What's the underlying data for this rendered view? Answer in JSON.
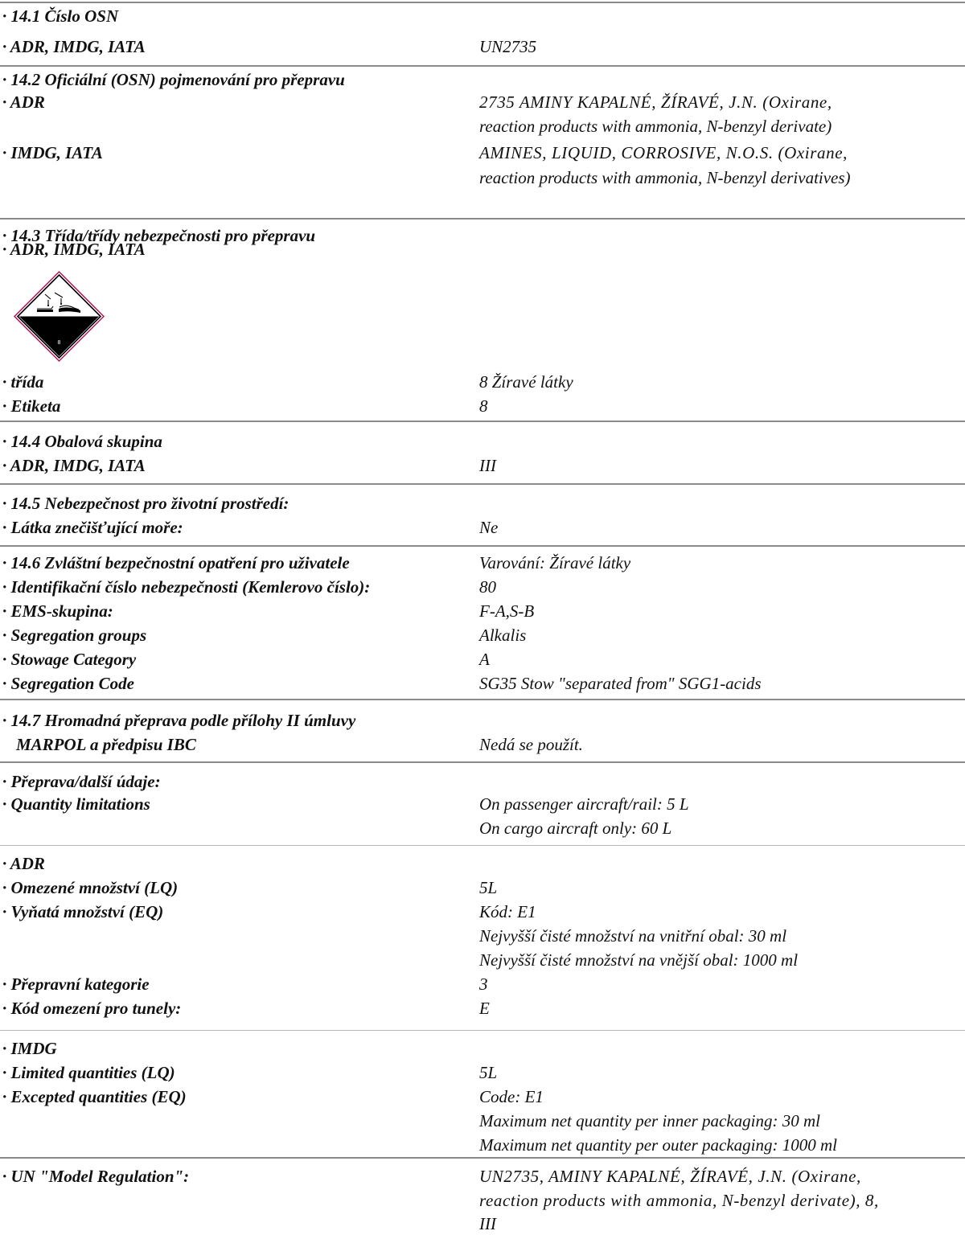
{
  "s1": {
    "title": "· 14.1 Číslo OSN",
    "l1": "· ADR, IMDG, IATA",
    "v1": "UN2735"
  },
  "s2": {
    "title": "· 14.2 Oficiální (OSN) pojmenování pro přepravu",
    "l1": "· ADR",
    "v1a": "2735 AMINY KAPALNÉ, ŽÍRAVÉ, J.N. (Oxirane,",
    "v1b": "reaction products with ammonia, N-benzyl derivate)",
    "l2": "· IMDG, IATA",
    "v2a": "AMINES, LIQUID, CORROSIVE, N.O.S. (Oxirane,",
    "v2b": "reaction products with ammonia, N-benzyl derivatives)"
  },
  "s3": {
    "title": "· 14.3 Třída/třídy nebezpečnosti pro přepravu",
    "sub": "· ADR, IMDG, IATA",
    "pictogram": {
      "icon": "corrosive-hazard-diamond",
      "number": "8"
    },
    "l1": "· třída",
    "v1": "8 Žíravé látky",
    "l2": "· Etiketa",
    "v2": "8"
  },
  "s4": {
    "title": "· 14.4 Obalová skupina",
    "l1": "· ADR, IMDG, IATA",
    "v1": "III"
  },
  "s5": {
    "title": "· 14.5 Nebezpečnost pro životní prostředí:",
    "l1": "· Látka znečišťující moře:",
    "v1": "Ne"
  },
  "s6": {
    "title": "· 14.6 Zvláštní bezpečnostní opatření pro uživatele",
    "tv": "Varování: Žíravé látky",
    "l1": "· Identifikační číslo nebezpečnosti (Kemlerovo číslo):",
    "v1": "80",
    "l2": "· EMS-skupina:",
    "v2": "F-A,S-B",
    "l3": "· Segregation groups",
    "v3": "Alkalis",
    "l4": "· Stowage Category",
    "v4": "A",
    "l5": "· Segregation Code",
    "v5": "SG35 Stow \"separated from\" SGG1-acids"
  },
  "s7": {
    "t1": "· 14.7 Hromadná přeprava podle přílohy II úmluvy",
    "t2": "MARPOL a předpisu IBC",
    "v": "Nedá se použít."
  },
  "s8": {
    "title": "· Přeprava/další údaje:",
    "l1": "· Quantity limitations",
    "v1a": "On passenger aircraft/rail: 5 L",
    "v1b": "On cargo aircraft only: 60 L"
  },
  "s9": {
    "title": "· ADR",
    "l1": "· Omezené množství (LQ)",
    "v1": "5L",
    "l2": "· Vyňatá množství (EQ)",
    "v2a": "Kód: E1",
    "v2b": "Nejvyšší čisté množství na vnitřní obal: 30 ml",
    "v2c": "Nejvyšší čisté množství na vnější obal: 1000 ml",
    "l3": "· Přepravní kategorie",
    "v3": "3",
    "l4": "· Kód omezení pro tunely:",
    "v4": "E"
  },
  "s10": {
    "title": "· IMDG",
    "l1": "· Limited quantities (LQ)",
    "v1": "5L",
    "l2": "· Excepted quantities (EQ)",
    "v2a": "Code: E1",
    "v2b": "Maximum net quantity per inner packaging: 30 ml",
    "v2c": "Maximum net quantity per outer packaging: 1000 ml"
  },
  "s11": {
    "l1": "· UN \"Model Regulation\":",
    "v1a": "UN2735, AMINY KAPALNÉ, ŽÍRAVÉ, J.N. (Oxirane,",
    "v1b": "reaction products with ammonia, N-benzyl derivate), 8,",
    "v1c": "III"
  }
}
